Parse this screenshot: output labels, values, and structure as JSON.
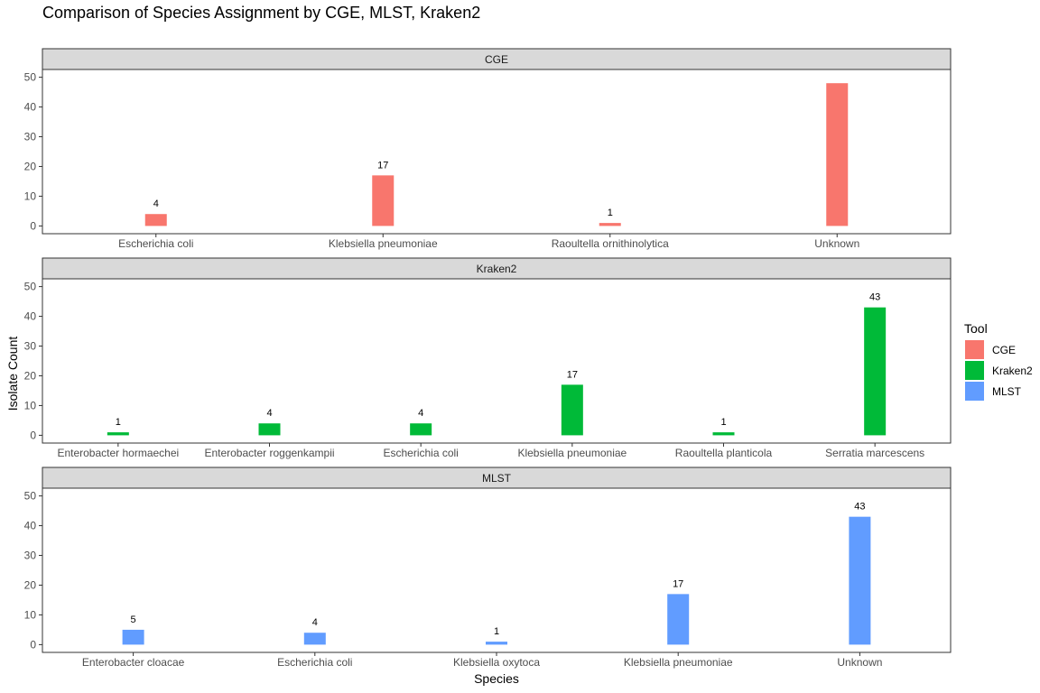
{
  "chart_data": {
    "type": "bar",
    "title": "Comparison of Species Assignment by CGE, MLST, Kraken2",
    "xlabel": "Species",
    "ylabel": "Isolate Count",
    "ylim": [
      0,
      50
    ],
    "yticks": [
      0,
      10,
      20,
      30,
      40,
      50
    ],
    "grid": false,
    "legend": {
      "title": "Tool",
      "placement": "right",
      "entries": [
        {
          "name": "CGE",
          "color": "#F8766D"
        },
        {
          "name": "Kraken2",
          "color": "#00BA38"
        },
        {
          "name": "MLST",
          "color": "#619CFF"
        }
      ]
    },
    "panels": [
      {
        "name": "CGE",
        "color": "#F8766D",
        "categories": [
          "Escherichia coli",
          "Klebsiella pneumoniae",
          "Raoultella ornithinolytica",
          "Unknown"
        ],
        "values": [
          4,
          17,
          1,
          48
        ],
        "labels": [
          "4",
          "17",
          "1",
          ""
        ]
      },
      {
        "name": "Kraken2",
        "color": "#00BA38",
        "categories": [
          "Enterobacter hormaechei",
          "Enterobacter roggenkampii",
          "Escherichia coli",
          "Klebsiella pneumoniae",
          "Raoultella planticola",
          "Serratia marcescens"
        ],
        "values": [
          1,
          4,
          4,
          17,
          1,
          43
        ],
        "labels": [
          "1",
          "4",
          "4",
          "17",
          "1",
          "43"
        ]
      },
      {
        "name": "MLST",
        "color": "#619CFF",
        "categories": [
          "Enterobacter cloacae",
          "Escherichia coli",
          "Klebsiella oxytoca",
          "Klebsiella pneumoniae",
          "Unknown"
        ],
        "values": [
          5,
          4,
          1,
          17,
          43
        ],
        "labels": [
          "5",
          "4",
          "1",
          "17",
          "43"
        ]
      }
    ]
  }
}
